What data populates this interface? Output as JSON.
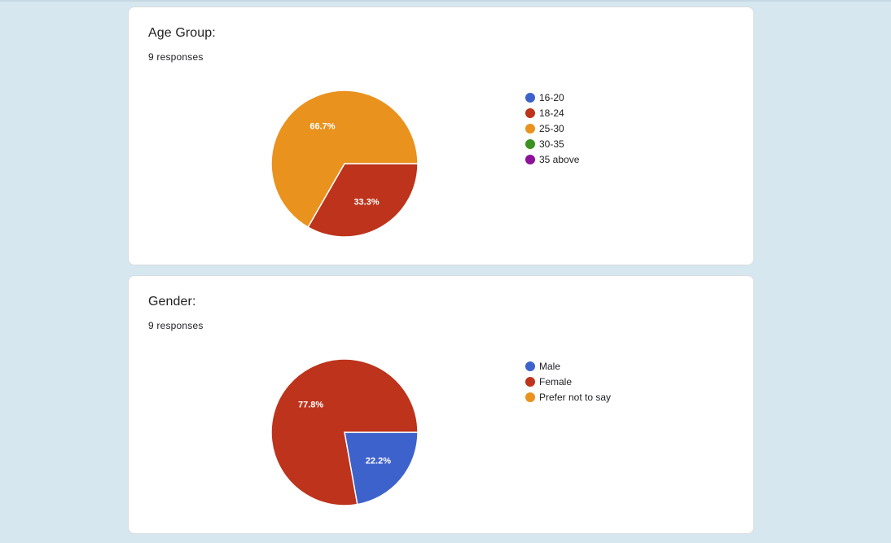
{
  "charts": [
    {
      "id": "age",
      "title": "Age Group:",
      "responses_label": "9 responses"
    },
    {
      "id": "gender",
      "title": "Gender:",
      "responses_label": "9 responses"
    }
  ],
  "chart_data": [
    {
      "type": "pie",
      "title": "Age Group:",
      "legend_position": "right",
      "slices": [
        {
          "label": "16-20",
          "value": 0,
          "percent_label": "",
          "color": "#3e62cc"
        },
        {
          "label": "18-24",
          "value": 33.3,
          "percent_label": "33.3%",
          "color": "#bd331b"
        },
        {
          "label": "25-30",
          "value": 66.7,
          "percent_label": "66.7%",
          "color": "#ea921e"
        },
        {
          "label": "30-35",
          "value": 0,
          "percent_label": "",
          "color": "#3b9121"
        },
        {
          "label": "35 above",
          "value": 0,
          "percent_label": "",
          "color": "#8e0f9a"
        }
      ]
    },
    {
      "type": "pie",
      "title": "Gender:",
      "legend_position": "right",
      "slices": [
        {
          "label": "Male",
          "value": 22.2,
          "percent_label": "22.2%",
          "color": "#3e62cc"
        },
        {
          "label": "Female",
          "value": 77.8,
          "percent_label": "77.8%",
          "color": "#bd331b"
        },
        {
          "label": "Prefer not to say",
          "value": 0,
          "percent_label": "",
          "color": "#ea921e"
        }
      ]
    }
  ]
}
